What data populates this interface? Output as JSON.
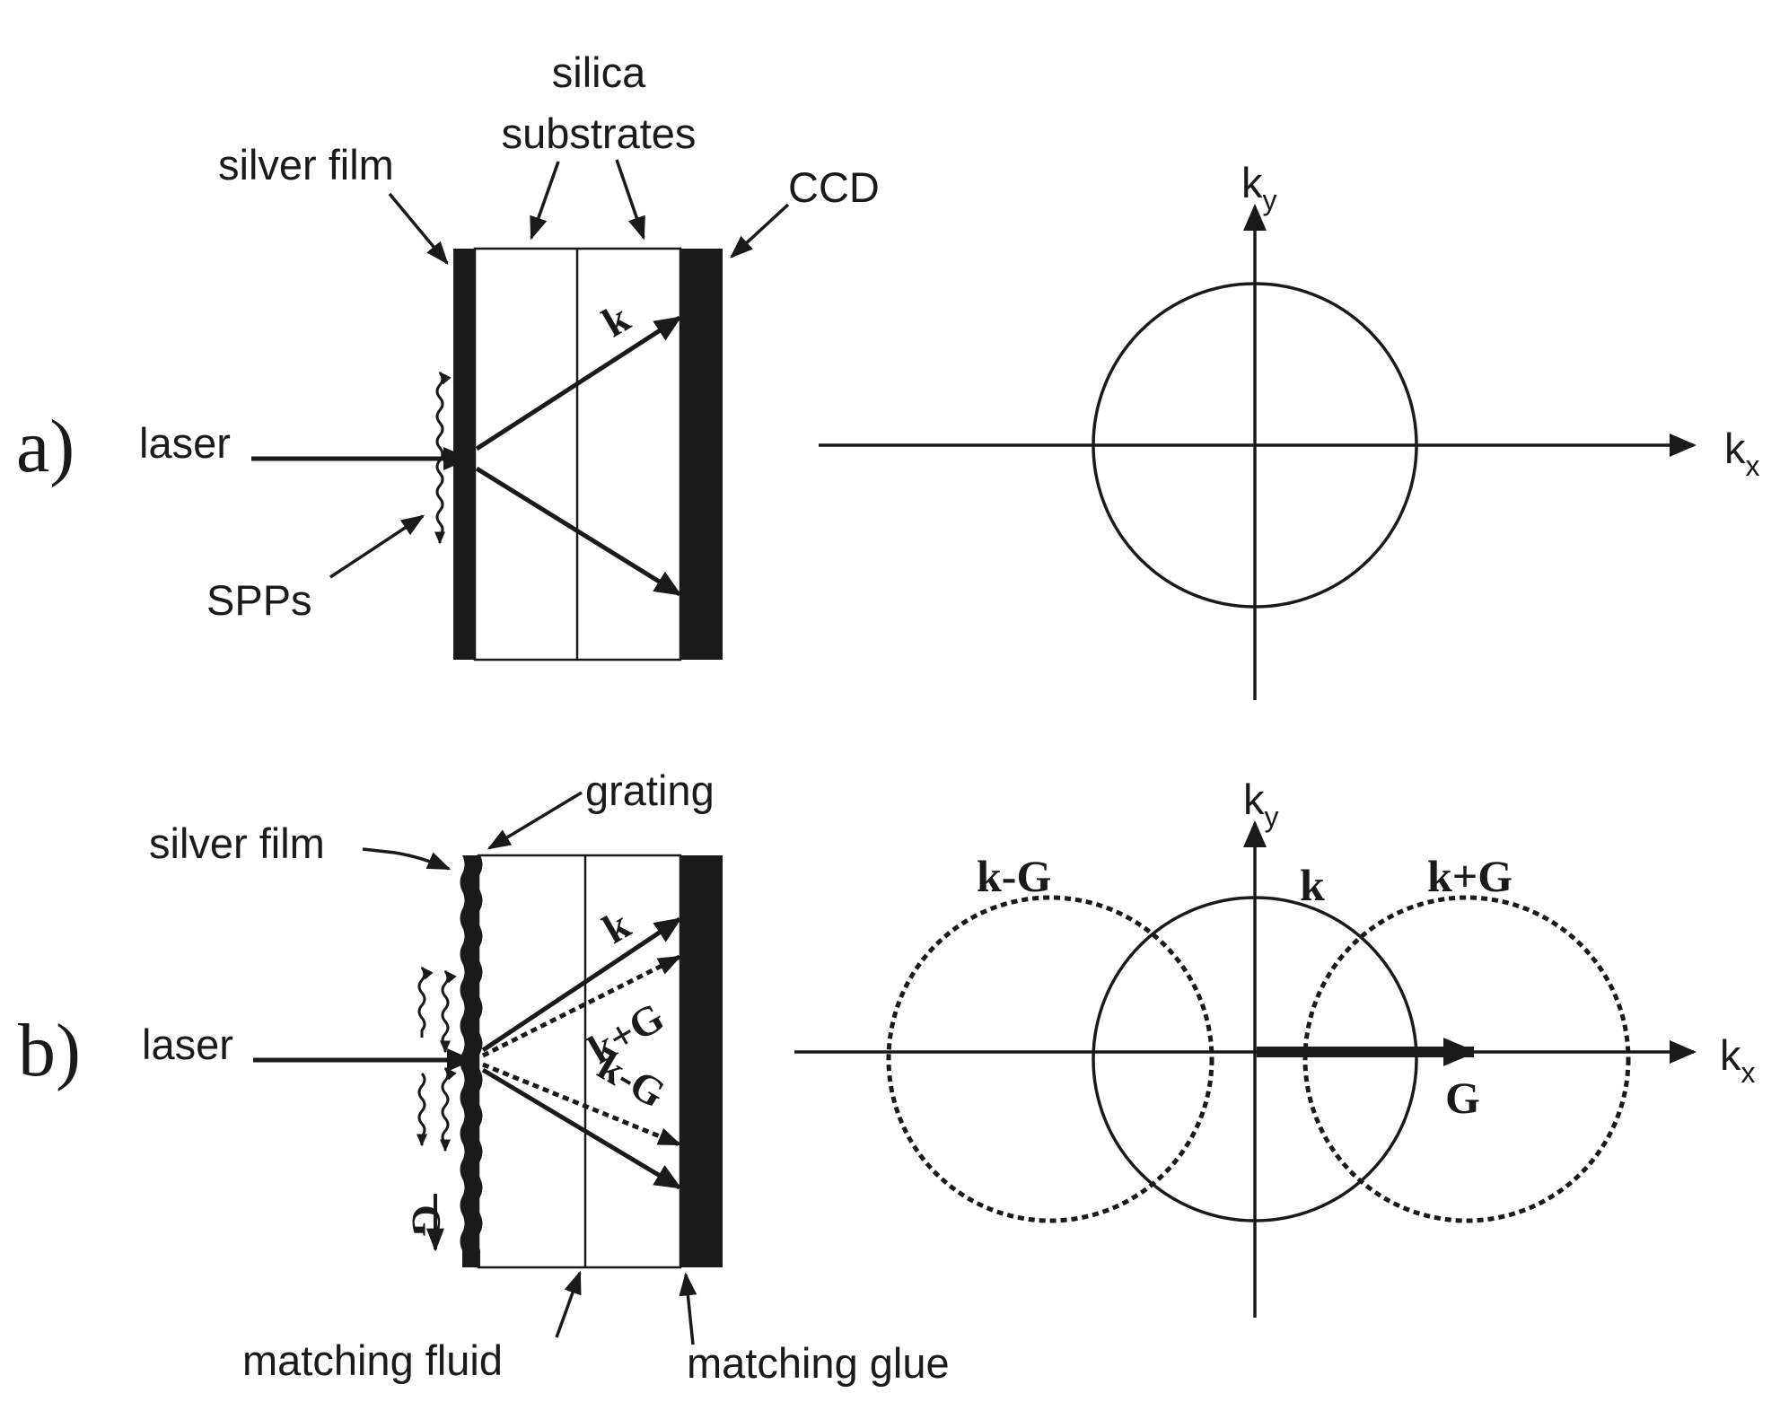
{
  "panel_a": {
    "panel_label": "a)",
    "labels": {
      "silica_line1": "silica",
      "silica_line2": "substrates",
      "silver_film": "silver film",
      "ccd": "CCD",
      "laser": "laser",
      "spps": "SPPs",
      "k": "k"
    },
    "reciprocal_space": {
      "kx_base": "k",
      "kx_sub": "x",
      "ky_base": "k",
      "ky_sub": "y"
    }
  },
  "panel_b": {
    "panel_label": "b)",
    "labels": {
      "grating": "grating",
      "silver_film": "silver film",
      "laser": "laser",
      "k": "k",
      "k_plus_g": "k+G",
      "k_minus_g": "k-G",
      "g": "G",
      "matching_fluid": "matching fluid",
      "matching_glue": "matching glue"
    },
    "reciprocal_space": {
      "kx_base": "k",
      "kx_sub": "x",
      "ky_base": "k",
      "ky_sub": "y",
      "circle_k": "k",
      "circle_k_minus_g": "k-G",
      "circle_k_plus_g": "k+G",
      "vector_g": "G"
    }
  },
  "colors": {
    "ink": "#1a1a1a",
    "background": "#ffffff"
  }
}
